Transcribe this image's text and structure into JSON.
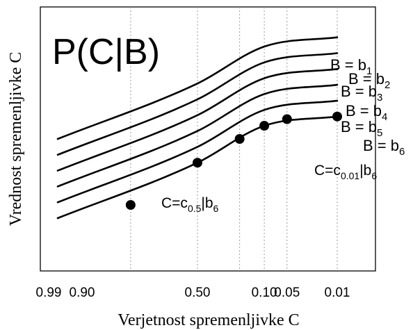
{
  "chart_data": {
    "type": "line",
    "title": "P(C|B)",
    "xlabel": "Verjetnost spremenljivke C",
    "ylabel": "Vrednost spremenljivke C",
    "x_tick_labels": [
      "0.99",
      "0.90",
      "0.50",
      "0.10",
      "0.05",
      "0.01"
    ],
    "x_gridlines": [
      0.9,
      0.5,
      0.2,
      0.1,
      0.05,
      0.01
    ],
    "x_range": [
      0.99,
      0.01
    ],
    "x_axis_inverted": true,
    "grid": "x-dotted",
    "y_ticks": false,
    "series": [
      {
        "name": "b1",
        "label_prefix": "B = b",
        "label_sub": "1",
        "x": [
          0.99,
          0.5,
          0.1,
          0.01
        ],
        "y": [
          0.5,
          0.71,
          0.85,
          0.885
        ]
      },
      {
        "name": "b2",
        "label_prefix": "B = b",
        "label_sub": "2",
        "x": [
          0.99,
          0.5,
          0.1,
          0.01
        ],
        "y": [
          0.44,
          0.65,
          0.79,
          0.825
        ]
      },
      {
        "name": "b3",
        "label_prefix": "B = b",
        "label_sub": "3",
        "x": [
          0.99,
          0.5,
          0.1,
          0.01
        ],
        "y": [
          0.38,
          0.59,
          0.73,
          0.765
        ]
      },
      {
        "name": "b4",
        "label_prefix": "B = b",
        "label_sub": "4",
        "x": [
          0.99,
          0.5,
          0.1,
          0.01
        ],
        "y": [
          0.32,
          0.53,
          0.67,
          0.705
        ]
      },
      {
        "name": "b5",
        "label_prefix": "B = b",
        "label_sub": "5",
        "x": [
          0.99,
          0.5,
          0.1,
          0.01
        ],
        "y": [
          0.26,
          0.47,
          0.61,
          0.645
        ]
      },
      {
        "name": "b6",
        "label_prefix": "B = b",
        "label_sub": "6",
        "x": [
          0.99,
          0.5,
          0.1,
          0.01
        ],
        "y": [
          0.2,
          0.41,
          0.55,
          0.585
        ]
      }
    ],
    "markers": {
      "series": "b6",
      "x": [
        0.9,
        0.5,
        0.2,
        0.1,
        0.05,
        0.01
      ],
      "y": [
        0.25,
        0.41,
        0.5,
        0.55,
        0.575,
        0.585
      ]
    },
    "annotations": [
      {
        "prefix": "C=c",
        "sub": "0.5",
        "suffix": "|b",
        "suffix_sub": "6",
        "at_x": 0.5
      },
      {
        "prefix": "C=c",
        "sub": "0.01",
        "suffix": "|b",
        "suffix_sub": "6",
        "at_x": 0.01
      }
    ]
  }
}
